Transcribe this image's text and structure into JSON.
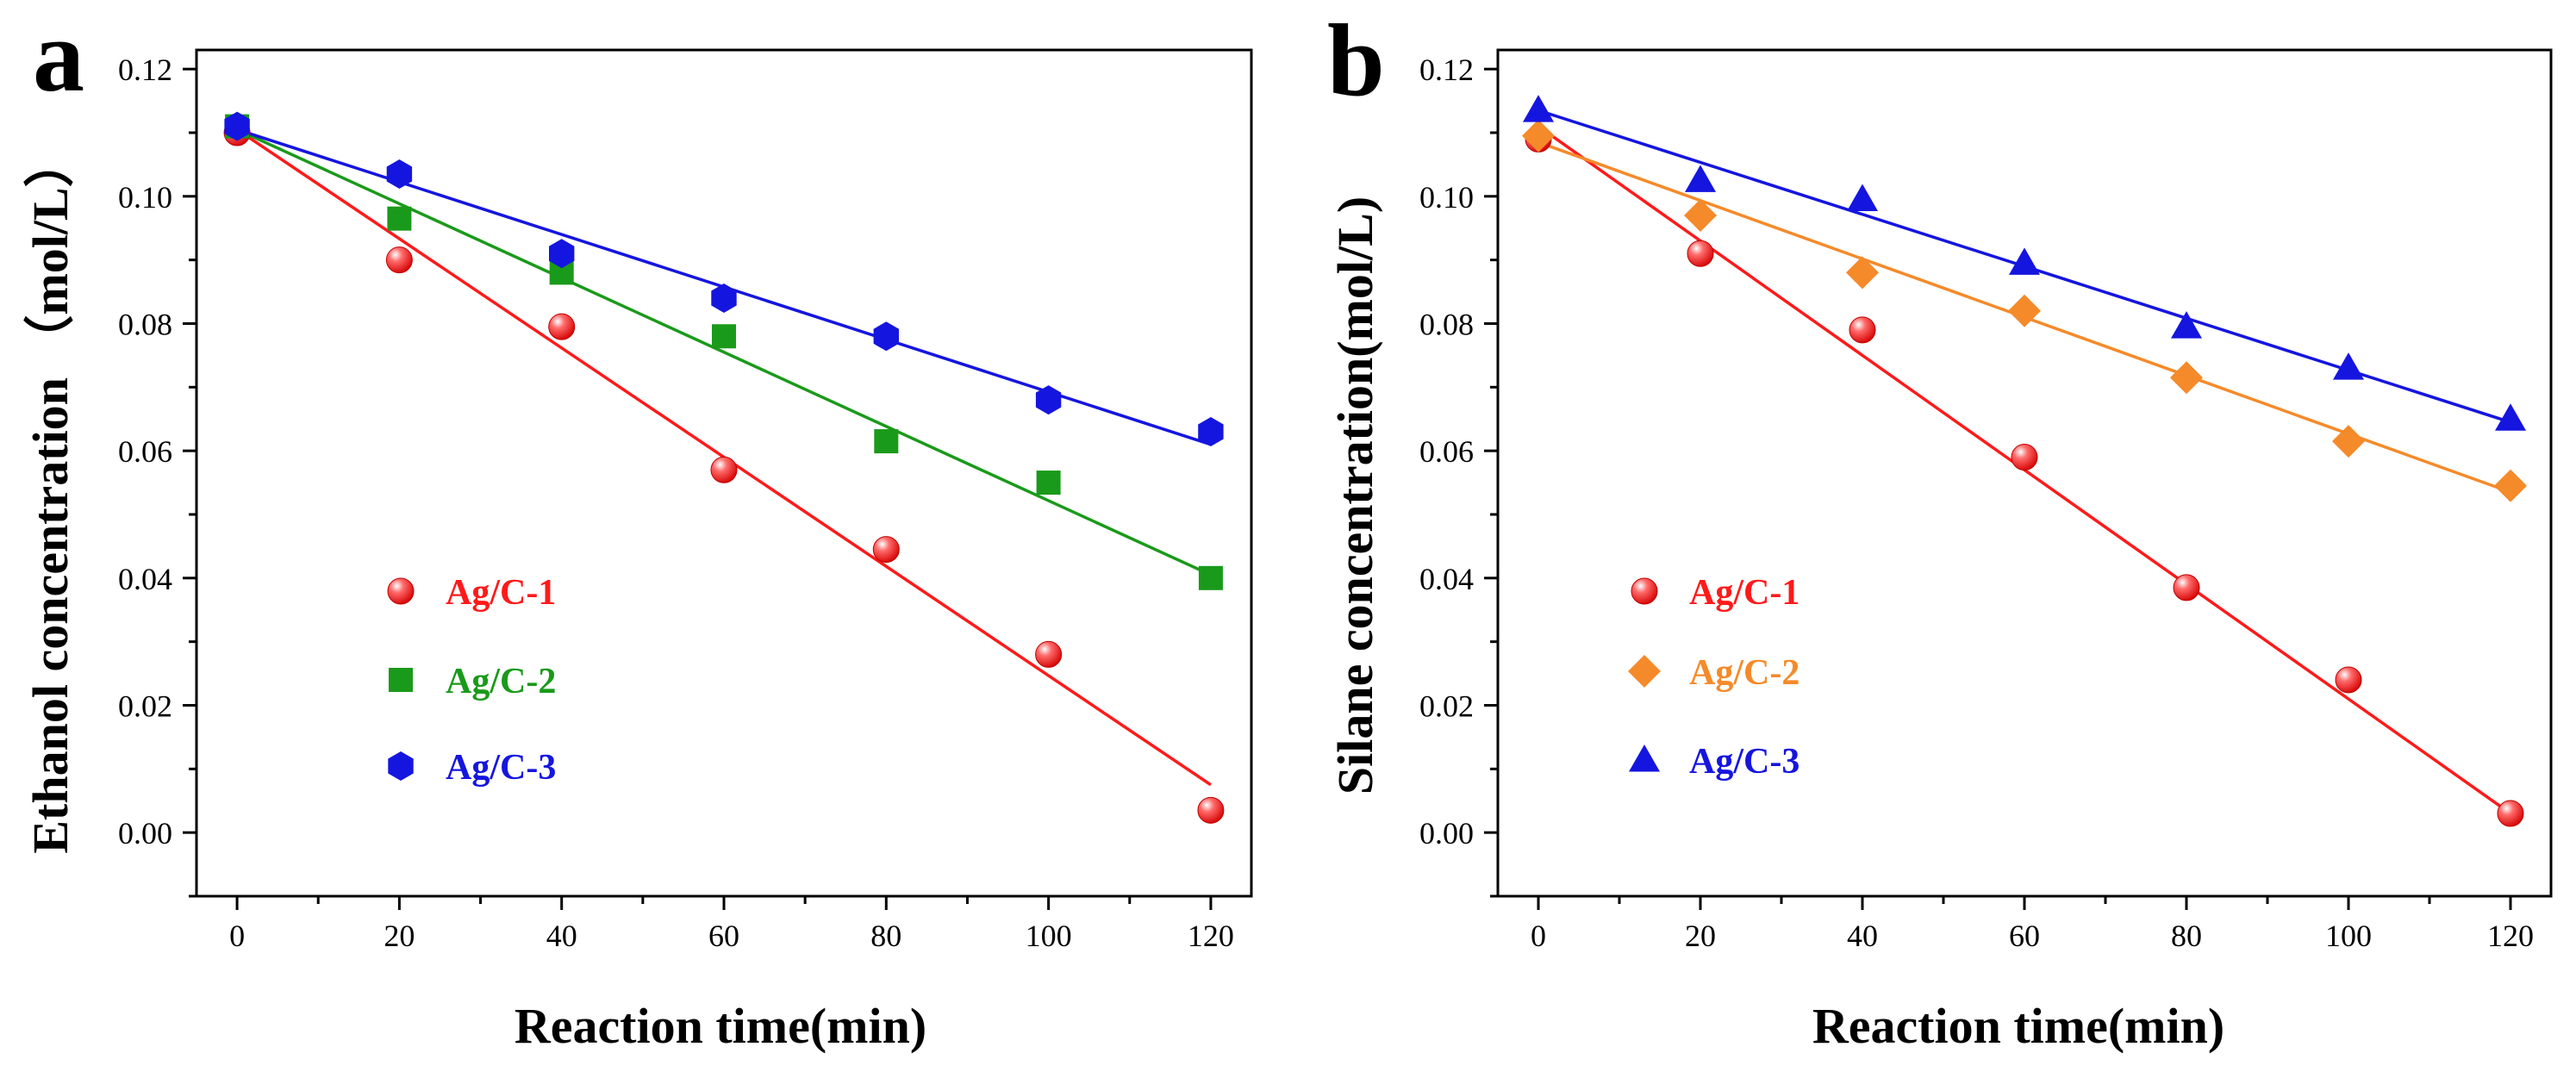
{
  "chart_data": [
    {
      "type": "scatter",
      "panel_label": "a",
      "title": "",
      "xlabel": "Reaction time(min)",
      "ylabel": "Ethanol concentration （mol/L）",
      "xlim": [
        -5,
        125
      ],
      "ylim": [
        -0.01,
        0.123
      ],
      "xticks": [
        0,
        20,
        40,
        60,
        80,
        100,
        120
      ],
      "yticks": [
        0.0,
        0.02,
        0.04,
        0.06,
        0.08,
        0.1,
        0.12
      ],
      "ytick_labels": [
        "0.00",
        "0.02",
        "0.04",
        "0.06",
        "0.08",
        "0.10",
        "0.12"
      ],
      "x": [
        0,
        20,
        40,
        60,
        80,
        100,
        120
      ],
      "legend_position": "lower-left",
      "series": [
        {
          "name": "Ag/C-1",
          "color": "#ff1a1a",
          "marker": "sphere",
          "values": [
            0.11,
            0.09,
            0.0795,
            0.057,
            0.0445,
            0.028,
            0.0035
          ],
          "fit": [
            0.1105,
            0.0075
          ]
        },
        {
          "name": "Ag/C-2",
          "color": "#1a9a1a",
          "marker": "square",
          "values": [
            0.111,
            0.0965,
            0.088,
            0.078,
            0.0615,
            0.055,
            0.04
          ],
          "fit": [
            0.1105,
            0.0405
          ]
        },
        {
          "name": "Ag/C-3",
          "color": "#1515e0",
          "marker": "hexagon",
          "values": [
            0.111,
            0.1035,
            0.091,
            0.084,
            0.078,
            0.068,
            0.063
          ],
          "fit": [
            0.1105,
            0.061
          ]
        }
      ]
    },
    {
      "type": "scatter",
      "panel_label": "b",
      "title": "",
      "xlabel": "Reaction time(min)",
      "ylabel": "Silane concentration(mol/L)",
      "xlim": [
        -5,
        125
      ],
      "ylim": [
        -0.01,
        0.123
      ],
      "xticks": [
        0,
        20,
        40,
        60,
        80,
        100,
        120
      ],
      "yticks": [
        0.0,
        0.02,
        0.04,
        0.06,
        0.08,
        0.1,
        0.12
      ],
      "ytick_labels": [
        "0.00",
        "0.02",
        "0.04",
        "0.06",
        "0.08",
        "0.10",
        "0.12"
      ],
      "x": [
        0,
        20,
        40,
        60,
        80,
        100,
        120
      ],
      "legend_position": "lower-left",
      "series": [
        {
          "name": "Ag/C-1",
          "color": "#ff1a1a",
          "marker": "sphere",
          "values": [
            0.109,
            0.091,
            0.079,
            0.059,
            0.0385,
            0.024,
            0.003
          ],
          "fit": [
            0.111,
            0.003
          ]
        },
        {
          "name": "Ag/C-2",
          "color": "#f58a2a",
          "marker": "diamond",
          "values": [
            0.1095,
            0.097,
            0.088,
            0.082,
            0.0715,
            0.0615,
            0.0545
          ],
          "fit": [
            0.1085,
            0.0535
          ]
        },
        {
          "name": "Ag/C-3",
          "color": "#1515e0",
          "marker": "triangle",
          "values": [
            0.1135,
            0.1025,
            0.0995,
            0.0895,
            0.0795,
            0.073,
            0.065
          ],
          "fit": [
            0.1135,
            0.0645
          ]
        }
      ]
    }
  ]
}
